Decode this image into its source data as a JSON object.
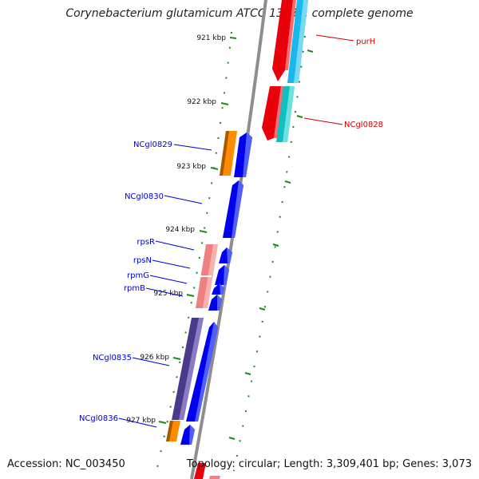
{
  "title": "Corynebacterium glutamicum ATCC 13032, complete genome",
  "accession": "Accession: NC_003450",
  "topology": "Topology: circular; Length: 3,309,401 bp; Genes: 3,073",
  "scale_ticks": [
    {
      "label": "921 kbp"
    },
    {
      "label": "922 kbp"
    },
    {
      "label": "923 kbp"
    },
    {
      "label": "924 kbp"
    },
    {
      "label": "925 kbp"
    },
    {
      "label": "926 kbp"
    },
    {
      "label": "927 kbp"
    }
  ],
  "genes": [
    {
      "label": "purH",
      "strand": "reverse"
    },
    {
      "label": "NCgl0828",
      "strand": "reverse"
    },
    {
      "label": "NCgl0829",
      "strand": "forward"
    },
    {
      "label": "NCgl0830",
      "strand": "forward"
    },
    {
      "label": "rpsR",
      "strand": "forward"
    },
    {
      "label": "rpsN",
      "strand": "forward"
    },
    {
      "label": "rpmG",
      "strand": "forward"
    },
    {
      "label": "rpmB",
      "strand": "forward"
    },
    {
      "label": "NCgl0835",
      "strand": "forward"
    },
    {
      "label": "NCgl0836",
      "strand": "forward"
    }
  ],
  "colors": {
    "forward_label": "#0000cc",
    "reverse_label": "#cc0000",
    "tick_green": "#1a8a1a",
    "backbone": "#888888"
  }
}
